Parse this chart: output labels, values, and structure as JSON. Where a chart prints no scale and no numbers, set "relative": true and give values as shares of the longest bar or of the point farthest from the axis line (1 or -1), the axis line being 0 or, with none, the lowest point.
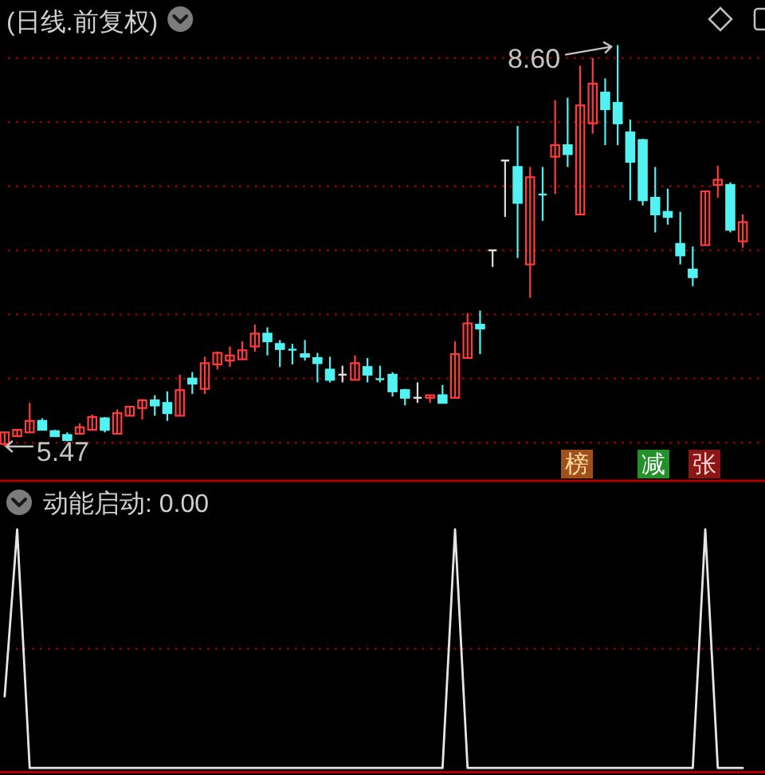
{
  "chart_data": [
    {
      "type": "candlestick",
      "title": "(日线.前复权)",
      "categories": [
        null,
        null,
        null,
        null,
        null,
        null,
        null,
        null,
        null,
        null,
        null,
        null,
        null,
        null,
        null,
        null,
        null,
        null,
        null,
        null,
        null,
        null,
        null,
        null,
        null,
        null,
        null,
        null,
        null,
        null,
        null,
        null,
        null,
        null,
        null,
        null,
        null,
        null,
        null,
        null,
        null,
        null,
        null,
        null,
        null,
        null,
        null,
        null,
        null,
        null,
        null,
        null,
        null,
        null,
        null,
        null,
        null,
        null,
        null,
        null
      ],
      "ohlc": [
        [
          5.49,
          5.58,
          5.47,
          5.58
        ],
        [
          5.55,
          5.6,
          5.55,
          5.6
        ],
        [
          5.58,
          5.81,
          5.58,
          5.67
        ],
        [
          5.67,
          5.69,
          5.6,
          5.6
        ],
        [
          5.59,
          5.6,
          5.55,
          5.55
        ],
        [
          5.56,
          5.58,
          5.51,
          5.52
        ],
        [
          5.57,
          5.65,
          5.57,
          5.62
        ],
        [
          5.6,
          5.72,
          5.6,
          5.7
        ],
        [
          5.69,
          5.7,
          5.58,
          5.6
        ],
        [
          5.57,
          5.76,
          5.57,
          5.73
        ],
        [
          5.71,
          5.78,
          5.71,
          5.78
        ],
        [
          5.77,
          5.84,
          5.68,
          5.83
        ],
        [
          5.83,
          5.87,
          5.71,
          5.79
        ],
        [
          5.81,
          5.9,
          5.67,
          5.73
        ],
        [
          5.71,
          6.03,
          5.71,
          5.91
        ],
        [
          6.0,
          6.05,
          5.88,
          5.96
        ],
        [
          5.92,
          6.17,
          5.88,
          6.12
        ],
        [
          6.11,
          6.21,
          6.07,
          6.2
        ],
        [
          6.14,
          6.25,
          6.09,
          6.18
        ],
        [
          6.15,
          6.29,
          6.15,
          6.22
        ],
        [
          6.25,
          6.42,
          6.21,
          6.35
        ],
        [
          6.35,
          6.4,
          6.18,
          6.29
        ],
        [
          6.27,
          6.3,
          6.09,
          6.23
        ],
        [
          6.23,
          6.27,
          6.11,
          6.22
        ],
        [
          6.19,
          6.3,
          6.14,
          6.17
        ],
        [
          6.16,
          6.2,
          5.97,
          6.12
        ],
        [
          6.07,
          6.17,
          5.97,
          5.99
        ],
        [
          6.03,
          6.1,
          5.97,
          6.03
        ],
        [
          5.99,
          6.18,
          5.99,
          6.12
        ],
        [
          6.09,
          6.16,
          5.97,
          6.03
        ],
        [
          6.0,
          6.1,
          5.97,
          5.99
        ],
        [
          6.03,
          6.05,
          5.86,
          5.9
        ],
        [
          5.91,
          5.92,
          5.79,
          5.85
        ],
        [
          5.85,
          5.97,
          5.81,
          5.85
        ],
        [
          5.85,
          5.87,
          5.81,
          5.87
        ],
        [
          5.87,
          5.95,
          5.81,
          5.81
        ],
        [
          5.85,
          6.29,
          5.85,
          6.19
        ],
        [
          6.16,
          6.51,
          6.16,
          6.43
        ],
        [
          6.42,
          6.53,
          6.19,
          6.39
        ],
        [
          7.0,
          7.0,
          6.87,
          7.0
        ],
        [
          7.7,
          7.7,
          7.26,
          7.7
        ],
        [
          7.65,
          7.97,
          6.94,
          7.37
        ],
        [
          6.89,
          7.65,
          6.63,
          7.57
        ],
        [
          7.44,
          7.65,
          7.23,
          7.43
        ],
        [
          7.73,
          8.17,
          7.44,
          7.82
        ],
        [
          7.82,
          8.19,
          7.65,
          7.75
        ],
        [
          7.28,
          8.44,
          7.28,
          8.13
        ],
        [
          7.99,
          8.5,
          7.91,
          8.3
        ],
        [
          8.23,
          8.34,
          7.82,
          8.1
        ],
        [
          8.15,
          8.6,
          7.82,
          7.99
        ],
        [
          7.92,
          8.02,
          7.39,
          7.69
        ],
        [
          7.86,
          7.87,
          7.35,
          7.39
        ],
        [
          7.41,
          7.65,
          7.14,
          7.28
        ],
        [
          7.3,
          7.48,
          7.2,
          7.26
        ],
        [
          7.05,
          7.3,
          6.89,
          6.96
        ],
        [
          6.85,
          7.03,
          6.72,
          6.79
        ],
        [
          7.04,
          7.46,
          7.04,
          7.46
        ],
        [
          7.51,
          7.66,
          7.41,
          7.55
        ],
        [
          7.51,
          7.53,
          7.14,
          7.16
        ],
        [
          7.07,
          7.28,
          7.02,
          7.22
        ]
      ],
      "colors": [
        "#ff3b3b",
        "#ff3b3b",
        "#ff3b3b",
        "#52f2f2",
        "#52f2f2",
        "#52f2f2",
        "#ff3b3b",
        "#ff3b3b",
        "#52f2f2",
        "#ff3b3b",
        "#ff3b3b",
        "#ff3b3b",
        "#52f2f2",
        "#52f2f2",
        "#ff3b3b",
        "#52f2f2",
        "#ff3b3b",
        "#ff3b3b",
        "#ff3b3b",
        "#ff3b3b",
        "#ff3b3b",
        "#52f2f2",
        "#52f2f2",
        "#52f2f2",
        "#52f2f2",
        "#52f2f2",
        "#52f2f2",
        "#e0e0e0",
        "#ff3b3b",
        "#52f2f2",
        "#52f2f2",
        "#52f2f2",
        "#52f2f2",
        "#e0e0e0",
        "#ff3b3b",
        "#52f2f2",
        "#ff3b3b",
        "#ff3b3b",
        "#52f2f2",
        "#e0e0e0",
        "#e0e0e0",
        "#52f2f2",
        "#ff3b3b",
        "#52f2f2",
        "#ff3b3b",
        "#52f2f2",
        "#ff3b3b",
        "#ff3b3b",
        "#52f2f2",
        "#52f2f2",
        "#52f2f2",
        "#52f2f2",
        "#52f2f2",
        "#52f2f2",
        "#52f2f2",
        "#52f2f2",
        "#ff3b3b",
        "#ff3b3b",
        "#52f2f2",
        "#ff3b3b"
      ],
      "ref_lines": [
        {
          "axis": "y",
          "value": 5.5,
          "color": "#a00000",
          "line_style": "dotted"
        },
        {
          "axis": "y",
          "value": 6.0,
          "color": "#a00000",
          "line_style": "dotted"
        },
        {
          "axis": "y",
          "value": 6.5,
          "color": "#a00000",
          "line_style": "dotted"
        },
        {
          "axis": "y",
          "value": 7.0,
          "color": "#a00000",
          "line_style": "dotted"
        },
        {
          "axis": "y",
          "value": 7.5,
          "color": "#a00000",
          "line_style": "dotted"
        },
        {
          "axis": "y",
          "value": 8.0,
          "color": "#a00000",
          "line_style": "dotted"
        },
        {
          "axis": "y",
          "value": 8.5,
          "color": "#a00000",
          "line_style": "dotted"
        }
      ],
      "annotations": [
        "8.60",
        {
          "text": "5.47",
          "y": 5.47
        },
        "榜",
        "减",
        "张"
      ]
    },
    {
      "type": "line",
      "title": "动能启动: 0.00",
      "relative": true,
      "categories": [
        null,
        null,
        null,
        null,
        null,
        null,
        null,
        null,
        null,
        null,
        null,
        null,
        null,
        null,
        null,
        null,
        null,
        null,
        null,
        null,
        null,
        null,
        null,
        null,
        null,
        null,
        null,
        null,
        null,
        null,
        null,
        null,
        null,
        null,
        null,
        null,
        null,
        null,
        null,
        null,
        null,
        null,
        null,
        null,
        null,
        null,
        null,
        null,
        null,
        null,
        null,
        null,
        null,
        null,
        null,
        null,
        null,
        null,
        null,
        null
      ],
      "ref_lines": [
        {
          "axis": "y",
          "value": 0.5,
          "color": "#a00000",
          "line_style": "dotted"
        }
      ],
      "series": [
        {
          "color": "#e6e6e6",
          "values": [
            0.3,
            1,
            0,
            0,
            0,
            0,
            0,
            0,
            0,
            0,
            0,
            0,
            0,
            0,
            0,
            0,
            0,
            0,
            0,
            0,
            0,
            0,
            0,
            0,
            0,
            0,
            0,
            0,
            0,
            0,
            0,
            0,
            0,
            0,
            0,
            0,
            1,
            0,
            0,
            0,
            0,
            0,
            0,
            0,
            0,
            0,
            0,
            0,
            0,
            0,
            0,
            0,
            0,
            0,
            0,
            0,
            1,
            0,
            0,
            0
          ]
        }
      ]
    }
  ]
}
